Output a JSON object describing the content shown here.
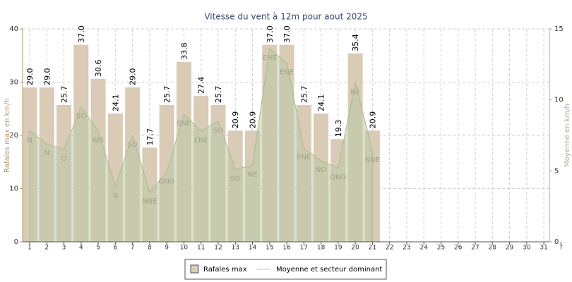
{
  "chart_data": {
    "type": "bar",
    "title": "Vitesse du vent à 12m pour aout 2025",
    "y_label": "Rafales max en km/h",
    "y2_label": "Moyenne en km/h",
    "categories": [
      "1",
      "2",
      "3",
      "4",
      "5",
      "6",
      "7",
      "8",
      "9",
      "10",
      "11",
      "12",
      "13",
      "14",
      "15",
      "16",
      "17",
      "18",
      "19",
      "20",
      "21",
      "22",
      "23",
      "24",
      "25",
      "26",
      "27",
      "28",
      "29",
      "30",
      "31",
      "?"
    ],
    "series": [
      {
        "name": "Rafales max",
        "color": "#d9cbb5",
        "values": [
          29.0,
          29.0,
          25.7,
          37.0,
          30.6,
          24.1,
          29.0,
          17.7,
          25.7,
          33.8,
          27.4,
          25.7,
          20.9,
          20.9,
          37.0,
          37.0,
          25.7,
          24.1,
          19.3,
          35.4,
          20.9,
          null,
          null,
          null,
          null,
          null,
          null,
          null,
          null,
          null,
          null,
          null
        ],
        "value_labels": [
          "29.0",
          "29.0",
          "25.7",
          "37.0",
          "30.6",
          "24.1",
          "29.0",
          "17.7",
          "25.7",
          "33.8",
          "27.4",
          "25.7",
          "20.9",
          "20.9",
          "37.0",
          "37.0",
          "25.7",
          "24.1",
          "19.3",
          "35.4",
          "20.9",
          null,
          null,
          null,
          null,
          null,
          null,
          null,
          null,
          null,
          null,
          null
        ]
      },
      {
        "name": "Moyenne et secteur dominant",
        "color": "#bccaa6",
        "axis": "y2",
        "values": [
          7.8,
          6.9,
          6.5,
          9.5,
          7.8,
          3.9,
          7.5,
          3.5,
          4.9,
          9.0,
          7.8,
          8.5,
          5.1,
          5.4,
          13.6,
          12.6,
          6.6,
          5.7,
          5.2,
          11.2,
          6.4,
          null,
          null,
          null,
          null,
          null,
          null,
          null,
          null,
          null,
          null,
          null
        ],
        "labels": [
          "N",
          "N",
          "O",
          "SO",
          "NO",
          "N",
          "SO",
          "NNE",
          "ONO",
          "ENE",
          "ENE",
          "SO",
          "SO",
          "NE",
          "ENE",
          "ENE",
          "ENE",
          "NO",
          "ONO",
          "NE",
          "NNE",
          null,
          null,
          null,
          null,
          null,
          null,
          null,
          null,
          null,
          null,
          null
        ]
      }
    ],
    "ylim": [
      0,
      40
    ],
    "yticks": [
      0,
      10,
      20,
      30,
      40
    ],
    "y2lim": [
      0,
      15
    ],
    "y2ticks": [
      0,
      5,
      10,
      15
    ],
    "grid": true,
    "legend": "bottom"
  }
}
